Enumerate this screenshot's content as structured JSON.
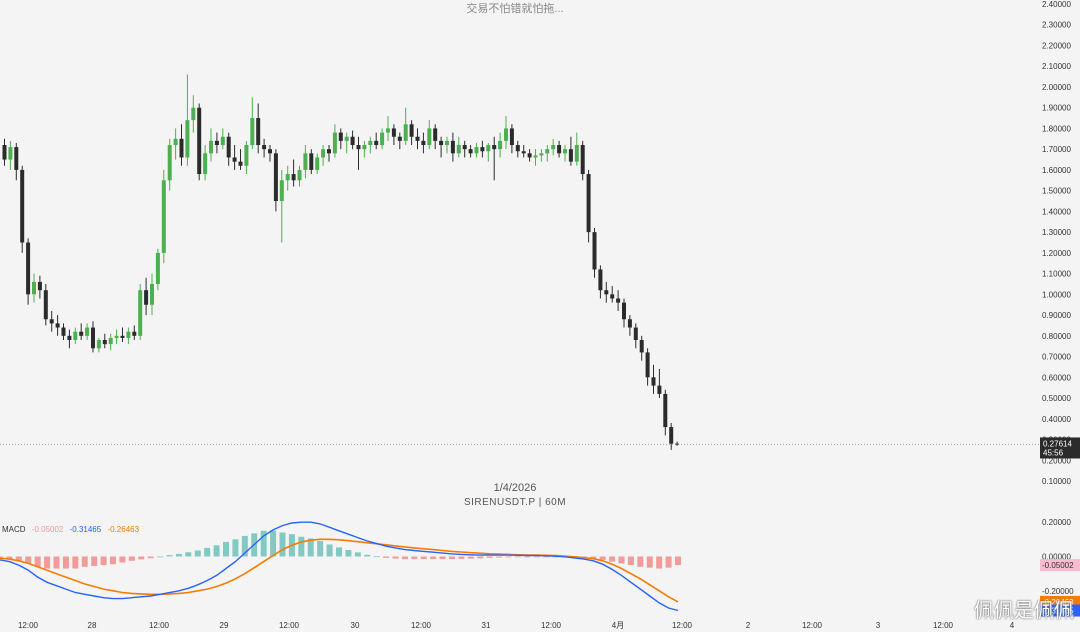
{
  "caption": "交易不怕错就怕拖...",
  "date_label": "1/4/2026",
  "symbol_label": "SIRENUSDT.P | 60M",
  "watermark": "佩佩是佩佩",
  "macd_legend": {
    "name": "MACD",
    "hist": "-0.05002",
    "macd": "-0.31465",
    "signal": "-0.26463"
  },
  "colors": {
    "up": "#4caf50",
    "down": "#2b2b2b",
    "macd": "#2962ff",
    "signal": "#f57c00",
    "hist_pos": "#26a69a",
    "hist_neg": "#ef5350",
    "last_price_bg": "#2b2b2b"
  },
  "chart_data": [
    {
      "type": "candlestick",
      "symbol": "SIRENUSDT.P",
      "interval": "60M",
      "ylim": [
        0.1,
        2.4
      ],
      "y_ticks": [
        "2.40000",
        "2.30000",
        "2.20000",
        "2.10000",
        "2.00000",
        "1.90000",
        "1.80000",
        "1.70000",
        "1.60000",
        "1.50000",
        "1.40000",
        "1.30000",
        "1.20000",
        "1.10000",
        "1.00000",
        "0.90000",
        "0.80000",
        "0.70000",
        "0.60000",
        "0.50000",
        "0.40000",
        "0.30000",
        "0.20000",
        "0.10000"
      ],
      "x_ticks": [
        "12:00",
        "28",
        "12:00",
        "29",
        "12:00",
        "30",
        "12:00",
        "31",
        "12:00",
        "4月",
        "12:00",
        "2",
        "12:00",
        "3",
        "12:00",
        "4"
      ],
      "last_price": "0.27614",
      "countdown": "45:56",
      "candles": [
        [
          1.72,
          1.75,
          1.62,
          1.65
        ],
        [
          1.65,
          1.74,
          1.6,
          1.71
        ],
        [
          1.71,
          1.73,
          1.55,
          1.6
        ],
        [
          1.6,
          1.62,
          1.2,
          1.25
        ],
        [
          1.25,
          1.27,
          0.95,
          1.0
        ],
        [
          1.0,
          1.1,
          0.96,
          1.06
        ],
        [
          1.06,
          1.09,
          0.98,
          1.02
        ],
        [
          1.02,
          1.05,
          0.85,
          0.88
        ],
        [
          0.88,
          0.92,
          0.82,
          0.86
        ],
        [
          0.86,
          0.9,
          0.8,
          0.84
        ],
        [
          0.84,
          0.86,
          0.78,
          0.8
        ],
        [
          0.8,
          0.83,
          0.74,
          0.78
        ],
        [
          0.78,
          0.84,
          0.76,
          0.82
        ],
        [
          0.82,
          0.86,
          0.78,
          0.8
        ],
        [
          0.8,
          0.86,
          0.78,
          0.84
        ],
        [
          0.84,
          0.87,
          0.72,
          0.74
        ],
        [
          0.74,
          0.79,
          0.72,
          0.78
        ],
        [
          0.78,
          0.81,
          0.74,
          0.76
        ],
        [
          0.76,
          0.81,
          0.73,
          0.79
        ],
        [
          0.79,
          0.83,
          0.76,
          0.8
        ],
        [
          0.8,
          0.84,
          0.77,
          0.79
        ],
        [
          0.79,
          0.84,
          0.76,
          0.82
        ],
        [
          0.82,
          0.85,
          0.78,
          0.8
        ],
        [
          0.8,
          1.05,
          0.78,
          1.02
        ],
        [
          1.02,
          1.08,
          0.9,
          0.95
        ],
        [
          0.95,
          1.1,
          0.9,
          1.05
        ],
        [
          1.05,
          1.22,
          1.02,
          1.2
        ],
        [
          1.2,
          1.6,
          1.15,
          1.55
        ],
        [
          1.55,
          1.75,
          1.5,
          1.72
        ],
        [
          1.72,
          1.8,
          1.65,
          1.75
        ],
        [
          1.75,
          1.82,
          1.62,
          1.66
        ],
        [
          1.66,
          2.06,
          1.62,
          1.84
        ],
        [
          1.84,
          1.96,
          1.78,
          1.9
        ],
        [
          1.9,
          1.92,
          1.55,
          1.58
        ],
        [
          1.58,
          1.72,
          1.55,
          1.68
        ],
        [
          1.68,
          1.8,
          1.64,
          1.74
        ],
        [
          1.74,
          1.78,
          1.68,
          1.72
        ],
        [
          1.72,
          1.8,
          1.7,
          1.76
        ],
        [
          1.76,
          1.78,
          1.62,
          1.66
        ],
        [
          1.66,
          1.72,
          1.6,
          1.64
        ],
        [
          1.64,
          1.7,
          1.6,
          1.62
        ],
        [
          1.62,
          1.74,
          1.58,
          1.72
        ],
        [
          1.72,
          1.95,
          1.7,
          1.85
        ],
        [
          1.85,
          1.92,
          1.68,
          1.72
        ],
        [
          1.72,
          1.75,
          1.66,
          1.7
        ],
        [
          1.7,
          1.72,
          1.64,
          1.68
        ],
        [
          1.68,
          1.7,
          1.4,
          1.45
        ],
        [
          1.45,
          1.6,
          1.25,
          1.55
        ],
        [
          1.55,
          1.62,
          1.5,
          1.58
        ],
        [
          1.58,
          1.65,
          1.52,
          1.55
        ],
        [
          1.55,
          1.62,
          1.52,
          1.6
        ],
        [
          1.6,
          1.72,
          1.56,
          1.68
        ],
        [
          1.68,
          1.7,
          1.58,
          1.6
        ],
        [
          1.6,
          1.68,
          1.58,
          1.66
        ],
        [
          1.66,
          1.72,
          1.62,
          1.7
        ],
        [
          1.7,
          1.72,
          1.64,
          1.68
        ],
        [
          1.68,
          1.82,
          1.66,
          1.78
        ],
        [
          1.78,
          1.8,
          1.7,
          1.74
        ],
        [
          1.74,
          1.78,
          1.68,
          1.76
        ],
        [
          1.76,
          1.79,
          1.7,
          1.72
        ],
        [
          1.72,
          1.76,
          1.6,
          1.7
        ],
        [
          1.7,
          1.74,
          1.66,
          1.72
        ],
        [
          1.72,
          1.76,
          1.68,
          1.74
        ],
        [
          1.74,
          1.78,
          1.7,
          1.72
        ],
        [
          1.72,
          1.8,
          1.7,
          1.78
        ],
        [
          1.78,
          1.86,
          1.74,
          1.8
        ],
        [
          1.8,
          1.82,
          1.72,
          1.76
        ],
        [
          1.76,
          1.78,
          1.7,
          1.74
        ],
        [
          1.74,
          1.9,
          1.72,
          1.82
        ],
        [
          1.82,
          1.84,
          1.72,
          1.76
        ],
        [
          1.76,
          1.8,
          1.7,
          1.74
        ],
        [
          1.74,
          1.78,
          1.68,
          1.72
        ],
        [
          1.72,
          1.84,
          1.7,
          1.8
        ],
        [
          1.8,
          1.82,
          1.7,
          1.74
        ],
        [
          1.74,
          1.76,
          1.66,
          1.72
        ],
        [
          1.72,
          1.76,
          1.68,
          1.74
        ],
        [
          1.74,
          1.78,
          1.64,
          1.68
        ],
        [
          1.68,
          1.76,
          1.66,
          1.72
        ],
        [
          1.72,
          1.74,
          1.66,
          1.7
        ],
        [
          1.7,
          1.72,
          1.66,
          1.68
        ],
        [
          1.68,
          1.73,
          1.66,
          1.71
        ],
        [
          1.71,
          1.74,
          1.66,
          1.69
        ],
        [
          1.69,
          1.73,
          1.64,
          1.72
        ],
        [
          1.72,
          1.76,
          1.55,
          1.7
        ],
        [
          1.7,
          1.78,
          1.66,
          1.74
        ],
        [
          1.74,
          1.86,
          1.7,
          1.8
        ],
        [
          1.8,
          1.82,
          1.68,
          1.72
        ],
        [
          1.72,
          1.74,
          1.66,
          1.69
        ],
        [
          1.69,
          1.72,
          1.66,
          1.68
        ],
        [
          1.68,
          1.7,
          1.64,
          1.66
        ],
        [
          1.66,
          1.7,
          1.62,
          1.67
        ],
        [
          1.67,
          1.7,
          1.64,
          1.68
        ],
        [
          1.68,
          1.72,
          1.64,
          1.7
        ],
        [
          1.7,
          1.75,
          1.67,
          1.72
        ],
        [
          1.72,
          1.74,
          1.66,
          1.68
        ],
        [
          1.68,
          1.72,
          1.64,
          1.7
        ],
        [
          1.7,
          1.76,
          1.62,
          1.64
        ],
        [
          1.64,
          1.78,
          1.62,
          1.72
        ],
        [
          1.72,
          1.74,
          1.55,
          1.58
        ],
        [
          1.58,
          1.6,
          1.25,
          1.3
        ],
        [
          1.3,
          1.32,
          1.08,
          1.12
        ],
        [
          1.12,
          1.14,
          0.98,
          1.02
        ],
        [
          1.02,
          1.06,
          0.96,
          1.0
        ],
        [
          1.0,
          1.04,
          0.96,
          0.98
        ],
        [
          0.98,
          1.02,
          0.92,
          0.96
        ],
        [
          0.96,
          0.98,
          0.84,
          0.88
        ],
        [
          0.88,
          0.9,
          0.8,
          0.84
        ],
        [
          0.84,
          0.86,
          0.74,
          0.78
        ],
        [
          0.78,
          0.8,
          0.68,
          0.72
        ],
        [
          0.72,
          0.74,
          0.56,
          0.6
        ],
        [
          0.6,
          0.66,
          0.52,
          0.56
        ],
        [
          0.56,
          0.64,
          0.5,
          0.52
        ],
        [
          0.52,
          0.54,
          0.32,
          0.36
        ],
        [
          0.36,
          0.38,
          0.25,
          0.28
        ],
        [
          0.28,
          0.29,
          0.27,
          0.276
        ]
      ]
    },
    {
      "type": "macd",
      "name": "MACD",
      "ylim": [
        -0.3,
        0.3
      ],
      "y_ticks": [
        "0.20000",
        "0.00000",
        "-0.20000"
      ],
      "hist_last": "-0.05002",
      "macd_last": "-0.31465",
      "signal_last": "-0.26463",
      "macd": [
        -0.02,
        -0.03,
        -0.05,
        -0.08,
        -0.12,
        -0.15,
        -0.17,
        -0.19,
        -0.21,
        -0.22,
        -0.23,
        -0.24,
        -0.245,
        -0.245,
        -0.24,
        -0.235,
        -0.23,
        -0.22,
        -0.21,
        -0.2,
        -0.185,
        -0.165,
        -0.14,
        -0.11,
        -0.07,
        -0.03,
        0.02,
        0.07,
        0.12,
        0.155,
        0.18,
        0.195,
        0.2,
        0.2,
        0.19,
        0.17,
        0.15,
        0.13,
        0.11,
        0.09,
        0.075,
        0.06,
        0.05,
        0.04,
        0.035,
        0.03,
        0.025,
        0.02,
        0.015,
        0.012,
        0.01,
        0.008,
        0.008,
        0.008,
        0.008,
        0.007,
        0.006,
        0.005,
        0.004,
        0.002,
        -0.002,
        -0.008,
        -0.015,
        -0.025,
        -0.045,
        -0.075,
        -0.11,
        -0.15,
        -0.19,
        -0.23,
        -0.27,
        -0.3,
        -0.31465
      ],
      "signal": [
        -0.01,
        -0.015,
        -0.025,
        -0.04,
        -0.06,
        -0.08,
        -0.1,
        -0.12,
        -0.14,
        -0.16,
        -0.175,
        -0.19,
        -0.2,
        -0.21,
        -0.215,
        -0.218,
        -0.22,
        -0.22,
        -0.218,
        -0.215,
        -0.21,
        -0.2,
        -0.19,
        -0.175,
        -0.155,
        -0.13,
        -0.1,
        -0.065,
        -0.03,
        0.005,
        0.04,
        0.065,
        0.085,
        0.095,
        0.1,
        0.1,
        0.097,
        0.092,
        0.086,
        0.08,
        0.074,
        0.068,
        0.062,
        0.056,
        0.05,
        0.045,
        0.04,
        0.035,
        0.03,
        0.026,
        0.022,
        0.019,
        0.016,
        0.014,
        0.012,
        0.01,
        0.009,
        0.008,
        0.007,
        0.005,
        0.002,
        -0.002,
        -0.007,
        -0.013,
        -0.025,
        -0.045,
        -0.07,
        -0.1,
        -0.13,
        -0.165,
        -0.2,
        -0.235,
        -0.26463
      ]
    }
  ]
}
